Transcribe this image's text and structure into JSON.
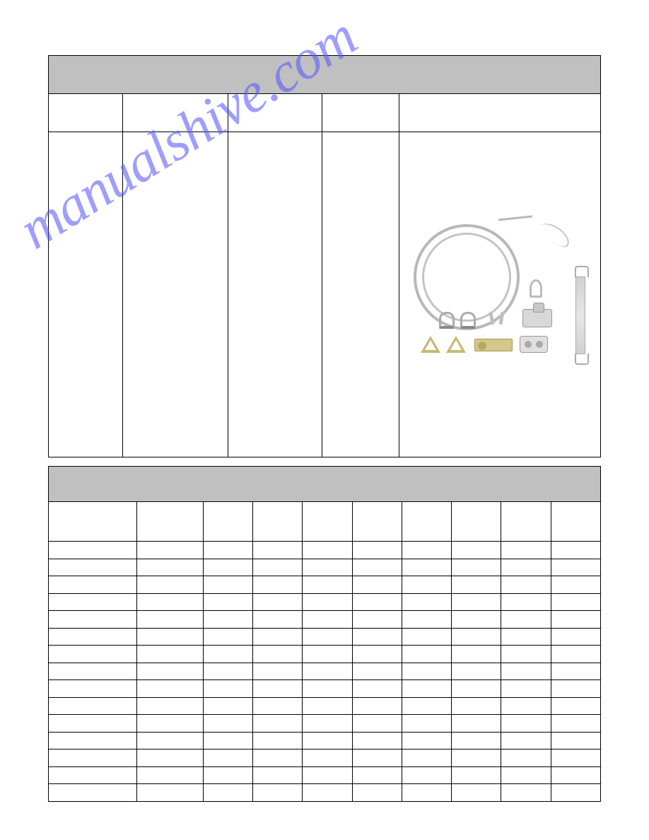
{
  "page": {
    "background_color": "#ffffff",
    "watermark_text": "manualshive.com",
    "watermark_color": "#5a5aff",
    "watermark_opacity": 0.58,
    "watermark_rotation_deg": -32,
    "watermark_fontsize": 80
  },
  "table1": {
    "title_bg": "#c0c0c0",
    "border_color": "#000000",
    "title_row_height": 54,
    "header_row_height": 54,
    "body_row_height": 460,
    "columns": [
      {
        "key": "c1",
        "width_pct": 13.5,
        "header": ""
      },
      {
        "key": "c2",
        "width_pct": 19,
        "header": ""
      },
      {
        "key": "c3",
        "width_pct": 17,
        "header": ""
      },
      {
        "key": "c4",
        "width_pct": 14,
        "header": ""
      },
      {
        "key": "c5",
        "width_pct": 36.5,
        "header": ""
      }
    ],
    "title": "",
    "image": {
      "description": "lifeline cable kit components",
      "items": [
        {
          "name": "cable-coil",
          "color": "#b8b8b8"
        },
        {
          "name": "cable-loop-end",
          "color": "#c4c4c4"
        },
        {
          "name": "turnbuckle",
          "color": "#d0d0d0"
        },
        {
          "name": "thimble",
          "color": "#bbbbbb"
        },
        {
          "name": "shackle",
          "qty": 2,
          "color": "#aaaaaa"
        },
        {
          "name": "bolts",
          "color": "#c0c0c0"
        },
        {
          "name": "mounting-bracket",
          "color": "#d8d8d8"
        },
        {
          "name": "triangle-carabiner",
          "qty": 2,
          "color": "#c9b870"
        },
        {
          "name": "cable-clamp",
          "color": "#d4c88a"
        },
        {
          "name": "glider",
          "color": "#e0e0e0"
        }
      ]
    }
  },
  "table2": {
    "title_bg": "#c0c0c0",
    "border_color": "#000000",
    "title_row_height": 50,
    "header_row_height": 56,
    "data_row_height": 24.5,
    "columns": [
      {
        "key": "d1",
        "width_pct": 16,
        "header": ""
      },
      {
        "key": "d2",
        "width_pct": 12,
        "header": ""
      },
      {
        "key": "d3",
        "width_pct": 9,
        "header": ""
      },
      {
        "key": "d4",
        "width_pct": 9,
        "header": ""
      },
      {
        "key": "d5",
        "width_pct": 9,
        "header": ""
      },
      {
        "key": "d6",
        "width_pct": 9,
        "header": ""
      },
      {
        "key": "d7",
        "width_pct": 9,
        "header": ""
      },
      {
        "key": "d8",
        "width_pct": 9,
        "header": ""
      },
      {
        "key": "d9",
        "width_pct": 9,
        "header": ""
      },
      {
        "key": "d10",
        "width_pct": 9,
        "header": ""
      }
    ],
    "title": "",
    "rows": [
      [
        "",
        "",
        "",
        "",
        "",
        "",
        "",
        "",
        "",
        ""
      ],
      [
        "",
        "",
        "",
        "",
        "",
        "",
        "",
        "",
        "",
        ""
      ],
      [
        "",
        "",
        "",
        "",
        "",
        "",
        "",
        "",
        "",
        ""
      ],
      [
        "",
        "",
        "",
        "",
        "",
        "",
        "",
        "",
        "",
        ""
      ],
      [
        "",
        "",
        "",
        "",
        "",
        "",
        "",
        "",
        "",
        ""
      ],
      [
        "",
        "",
        "",
        "",
        "",
        "",
        "",
        "",
        "",
        ""
      ],
      [
        "",
        "",
        "",
        "",
        "",
        "",
        "",
        "",
        "",
        ""
      ],
      [
        "",
        "",
        "",
        "",
        "",
        "",
        "",
        "",
        "",
        ""
      ],
      [
        "",
        "",
        "",
        "",
        "",
        "",
        "",
        "",
        "",
        ""
      ],
      [
        "",
        "",
        "",
        "",
        "",
        "",
        "",
        "",
        "",
        ""
      ],
      [
        "",
        "",
        "",
        "",
        "",
        "",
        "",
        "",
        "",
        ""
      ],
      [
        "",
        "",
        "",
        "",
        "",
        "",
        "",
        "",
        "",
        ""
      ],
      [
        "",
        "",
        "",
        "",
        "",
        "",
        "",
        "",
        "",
        ""
      ],
      [
        "",
        "",
        "",
        "",
        "",
        "",
        "",
        "",
        "",
        ""
      ],
      [
        "",
        "",
        "",
        "",
        "",
        "",
        "",
        "",
        "",
        ""
      ]
    ]
  }
}
